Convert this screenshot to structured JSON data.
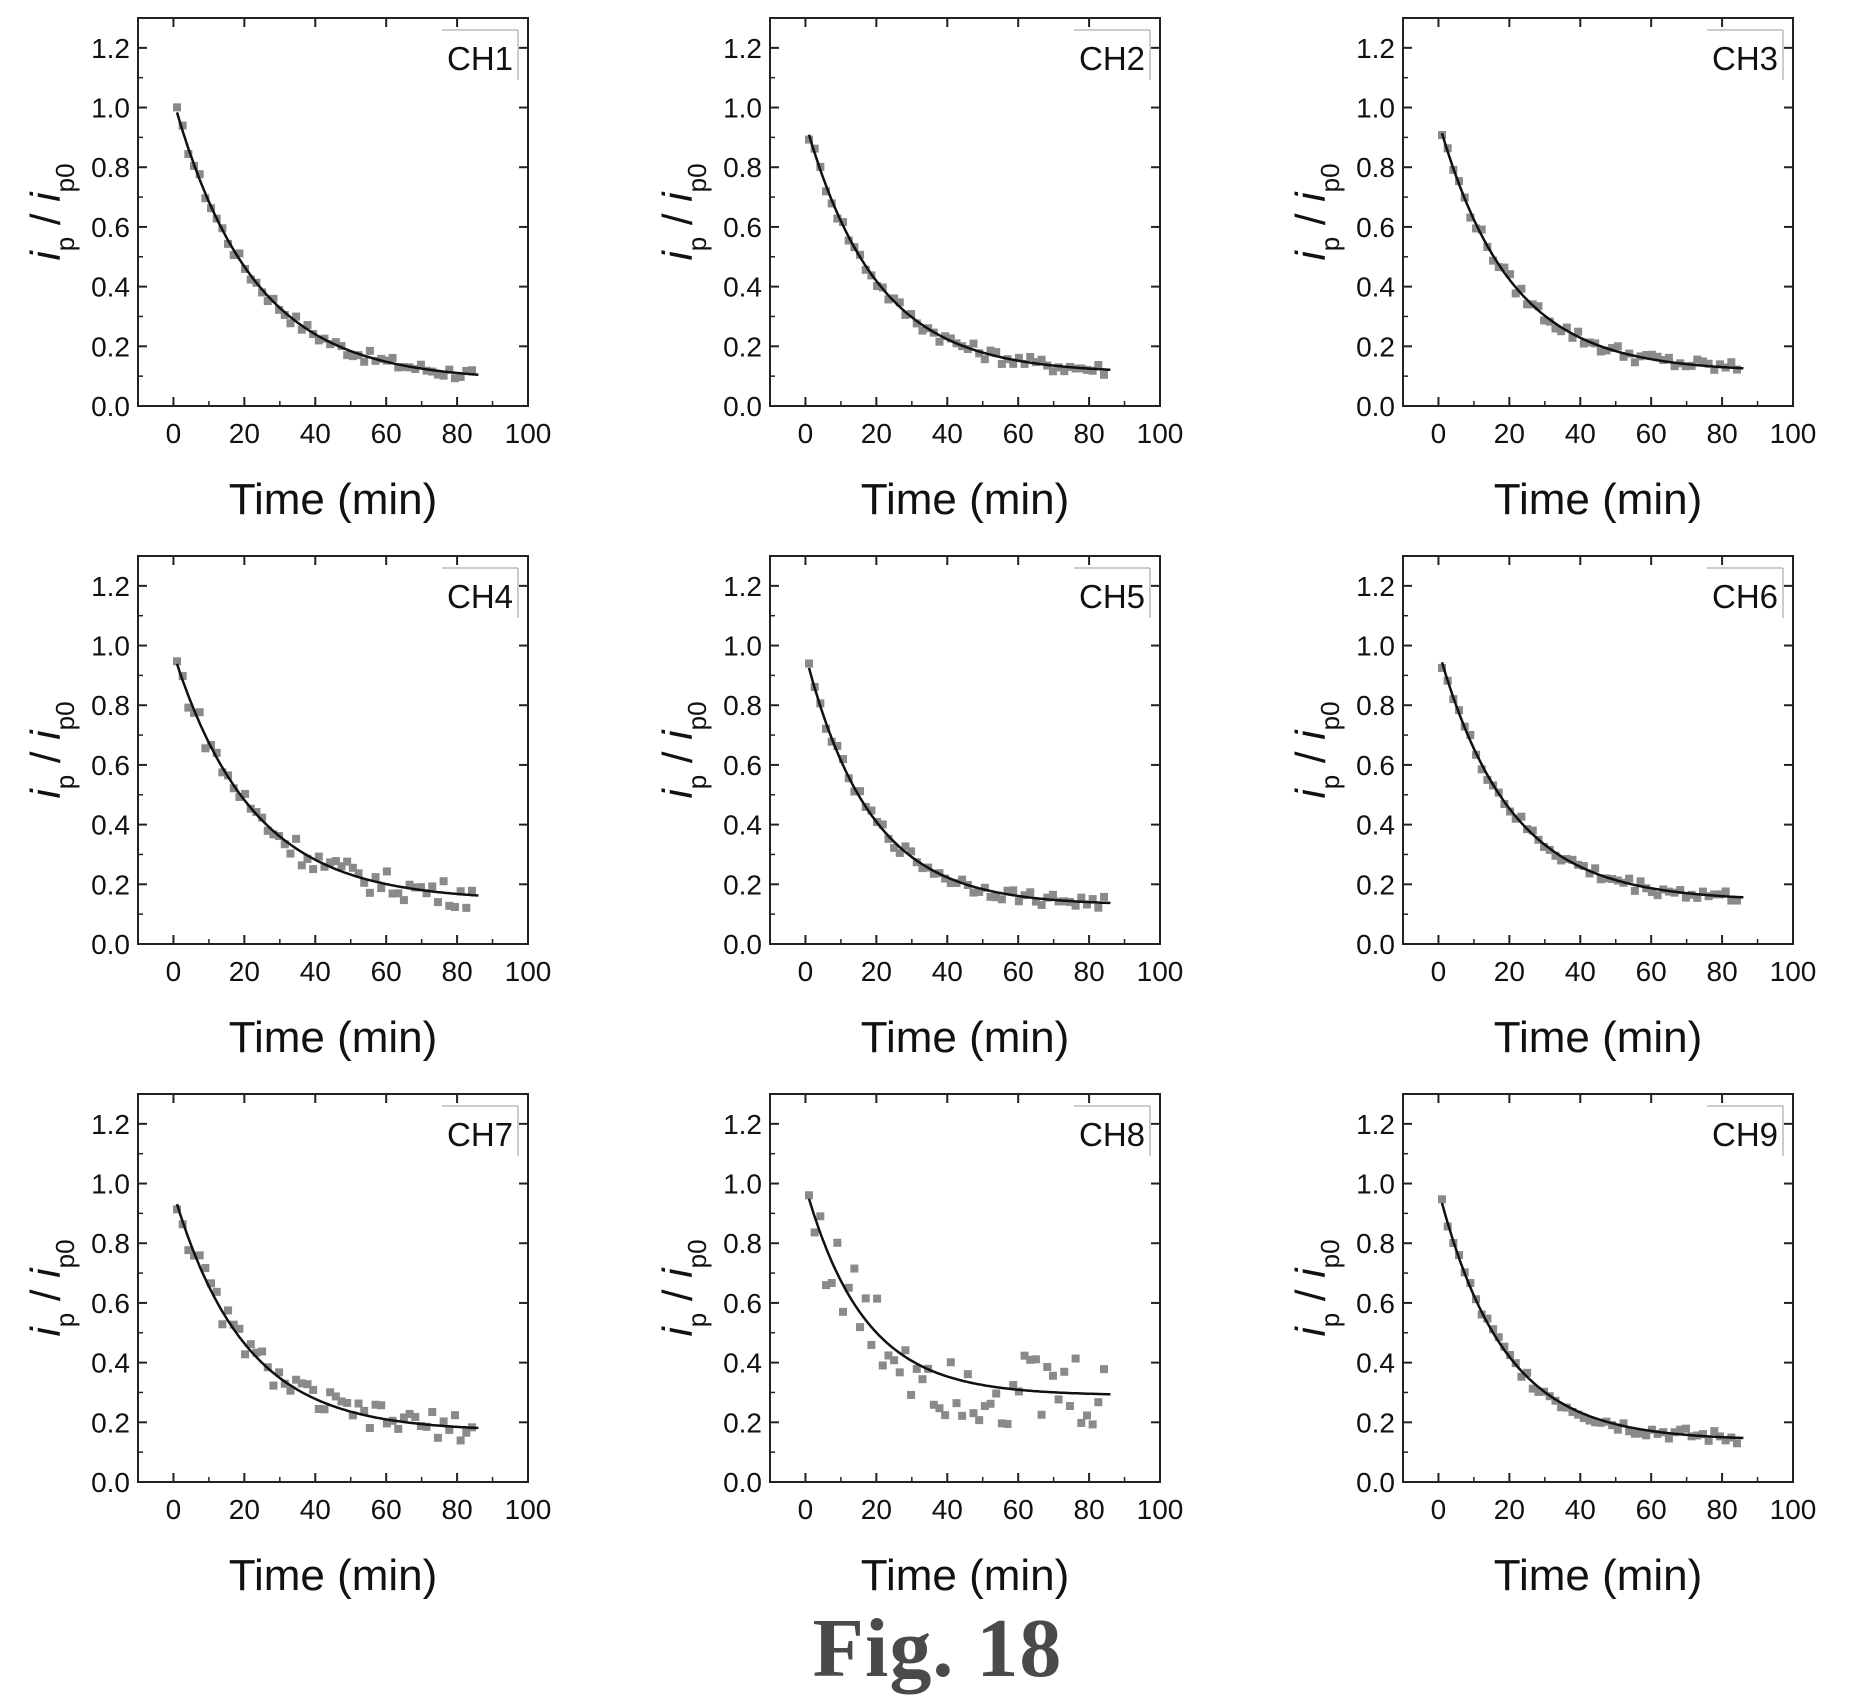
{
  "figure_caption": "Fig. 18",
  "chart_data": [
    {
      "type": "scatter",
      "label": "CH1",
      "xlabel": "Time (min)",
      "ylabel": "i / i p0",
      "xlim": [
        -10,
        100
      ],
      "ylim": [
        0,
        1.3
      ],
      "xticks": [
        0,
        20,
        40,
        60,
        80,
        100
      ],
      "yticks": [
        0.0,
        0.2,
        0.4,
        0.6,
        0.8,
        1.0,
        1.2
      ],
      "grid": false,
      "fit": {
        "a": 0.94,
        "k": 0.045,
        "c": 0.085
      }
    },
    {
      "type": "scatter",
      "label": "CH2",
      "xlabel": "Time (min)",
      "ylabel": "i / i p0",
      "xlim": [
        -10,
        100
      ],
      "ylim": [
        0,
        1.3
      ],
      "xticks": [
        0,
        20,
        40,
        60,
        80,
        100
      ],
      "yticks": [
        0.0,
        0.2,
        0.4,
        0.6,
        0.8,
        1.0,
        1.2
      ],
      "grid": false,
      "fit": {
        "a": 0.84,
        "k": 0.05,
        "c": 0.11
      }
    },
    {
      "type": "scatter",
      "label": "CH3",
      "xlabel": "Time (min)",
      "ylabel": "i / i p0",
      "xlim": [
        -10,
        100
      ],
      "ylim": [
        0,
        1.3
      ],
      "xticks": [
        0,
        20,
        40,
        60,
        80,
        100
      ],
      "yticks": [
        0.0,
        0.2,
        0.4,
        0.6,
        0.8,
        1.0,
        1.2
      ],
      "grid": false,
      "fit": {
        "a": 0.84,
        "k": 0.05,
        "c": 0.115
      }
    },
    {
      "type": "scatter",
      "label": "CH4",
      "xlabel": "Time (min)",
      "ylabel": "i / i p0",
      "xlim": [
        -10,
        100
      ],
      "ylim": [
        0,
        1.3
      ],
      "xticks": [
        0,
        20,
        40,
        60,
        80,
        100
      ],
      "yticks": [
        0.0,
        0.2,
        0.4,
        0.6,
        0.8,
        1.0,
        1.2
      ],
      "grid": false,
      "fit": {
        "a": 0.83,
        "k": 0.045,
        "c": 0.145
      }
    },
    {
      "type": "scatter",
      "label": "CH5",
      "xlabel": "Time (min)",
      "ylabel": "i / i p0",
      "xlim": [
        -10,
        100
      ],
      "ylim": [
        0,
        1.3
      ],
      "xticks": [
        0,
        20,
        40,
        60,
        80,
        100
      ],
      "yticks": [
        0.0,
        0.2,
        0.4,
        0.6,
        0.8,
        1.0,
        1.2
      ],
      "grid": false,
      "fit": {
        "a": 0.84,
        "k": 0.055,
        "c": 0.13
      }
    },
    {
      "type": "scatter",
      "label": "CH6",
      "xlabel": "Time (min)",
      "ylabel": "i / i p0",
      "xlim": [
        -10,
        100
      ],
      "ylim": [
        0,
        1.3
      ],
      "xticks": [
        0,
        20,
        40,
        60,
        80,
        100
      ],
      "yticks": [
        0.0,
        0.2,
        0.4,
        0.6,
        0.8,
        1.0,
        1.2
      ],
      "grid": false,
      "fit": {
        "a": 0.84,
        "k": 0.05,
        "c": 0.145
      }
    },
    {
      "type": "scatter",
      "label": "CH7",
      "xlabel": "Time (min)",
      "ylabel": "i / i p0",
      "xlim": [
        -10,
        100
      ],
      "ylim": [
        0,
        1.3
      ],
      "xticks": [
        0,
        20,
        40,
        60,
        80,
        100
      ],
      "yticks": [
        0.0,
        0.2,
        0.4,
        0.6,
        0.8,
        1.0,
        1.2
      ],
      "grid": false,
      "fit": {
        "a": 0.8,
        "k": 0.05,
        "c": 0.17
      }
    },
    {
      "type": "scatter",
      "label": "CH8",
      "xlabel": "Time (min)",
      "ylabel": "i / i p0",
      "xlim": [
        -10,
        100
      ],
      "ylim": [
        0,
        1.3
      ],
      "xticks": [
        0,
        20,
        40,
        60,
        80,
        100
      ],
      "yticks": [
        0.0,
        0.2,
        0.4,
        0.6,
        0.8,
        1.0,
        1.2
      ],
      "grid": false,
      "fit": {
        "a": 0.7,
        "k": 0.06,
        "c": 0.29
      }
    },
    {
      "type": "scatter",
      "label": "CH9",
      "xlabel": "Time (min)",
      "ylabel": "i / i p0",
      "xlim": [
        -10,
        100
      ],
      "ylim": [
        0,
        1.3
      ],
      "xticks": [
        0,
        20,
        40,
        60,
        80,
        100
      ],
      "yticks": [
        0.0,
        0.2,
        0.4,
        0.6,
        0.8,
        1.0,
        1.2
      ],
      "grid": false,
      "fit": {
        "a": 0.84,
        "k": 0.055,
        "c": 0.14
      }
    }
  ]
}
